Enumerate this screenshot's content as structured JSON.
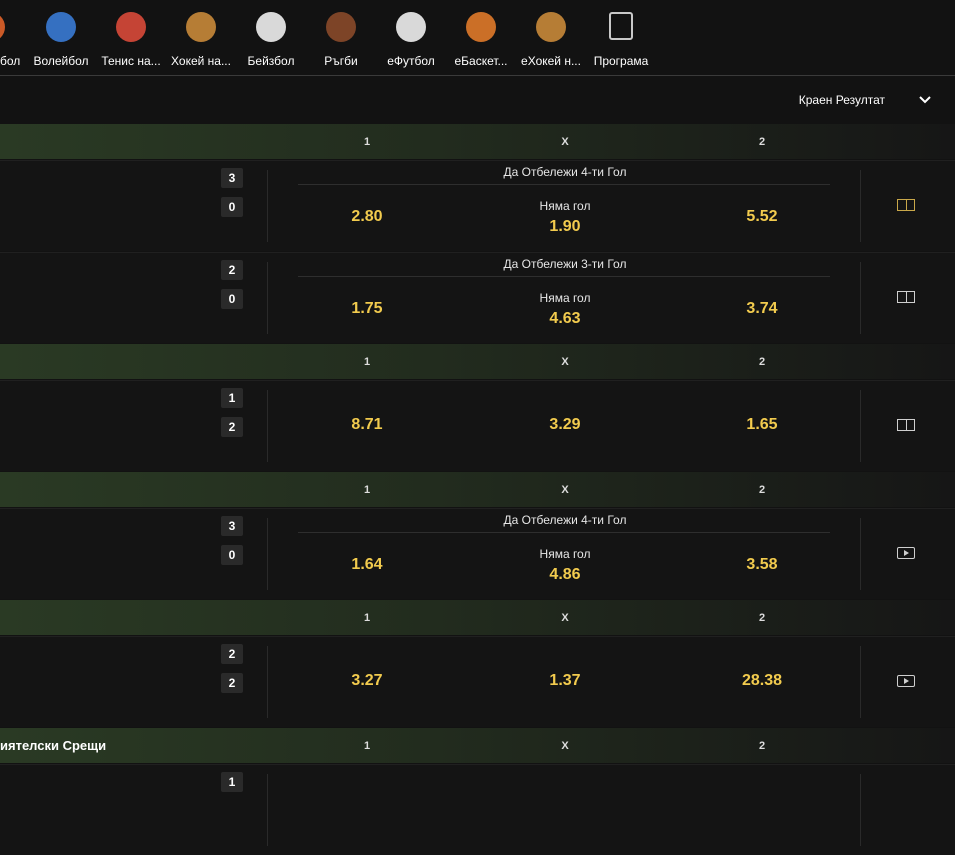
{
  "nav": {
    "items": [
      "бол",
      "Волейбол",
      "Тенис на...",
      "Хокей на...",
      "Бейзбол",
      "Ръгби",
      "еФутбол",
      "еБаскет...",
      "еХокей н...",
      "Програма"
    ]
  },
  "market_selector": {
    "label": "Краен Резултат"
  },
  "sections": [
    {
      "header": {
        "columns": [
          "1",
          "X",
          "2"
        ]
      },
      "events": [
        {
          "scores": [
            "3",
            "0"
          ],
          "market": "Да Отбележи 4-ти Гол",
          "odds": [
            "2.80",
            "1.90",
            "5.52"
          ],
          "draw_label": "Няма гол",
          "media": "field-active"
        },
        {
          "scores": [
            "2",
            "0"
          ],
          "market": "Да Отбележи 3-ти Гол",
          "odds": [
            "1.75",
            "4.63",
            "3.74"
          ],
          "draw_label": "Няма гол",
          "media": "field"
        }
      ]
    },
    {
      "header": {
        "columns": [
          "1",
          "X",
          "2"
        ]
      },
      "events": [
        {
          "scores": [
            "1",
            "2"
          ],
          "odds": [
            "8.71",
            "3.29",
            "1.65"
          ],
          "media": "field"
        }
      ]
    },
    {
      "header": {
        "columns": [
          "1",
          "X",
          "2"
        ]
      },
      "events": [
        {
          "scores": [
            "3",
            "0"
          ],
          "market": "Да Отбележи 4-ти Гол",
          "odds": [
            "1.64",
            "4.86",
            "3.58"
          ],
          "draw_label": "Няма гол",
          "media": "video"
        }
      ]
    },
    {
      "header": {
        "columns": [
          "1",
          "X",
          "2"
        ]
      },
      "events": [
        {
          "scores": [
            "2",
            "2"
          ],
          "odds": [
            "3.27",
            "1.37",
            "28.38"
          ],
          "media": "video"
        }
      ]
    },
    {
      "header": {
        "title": "иятелски Срещи",
        "columns": [
          "1",
          "X",
          "2"
        ]
      },
      "events": [
        {
          "scores": [
            "1"
          ]
        }
      ]
    }
  ]
}
